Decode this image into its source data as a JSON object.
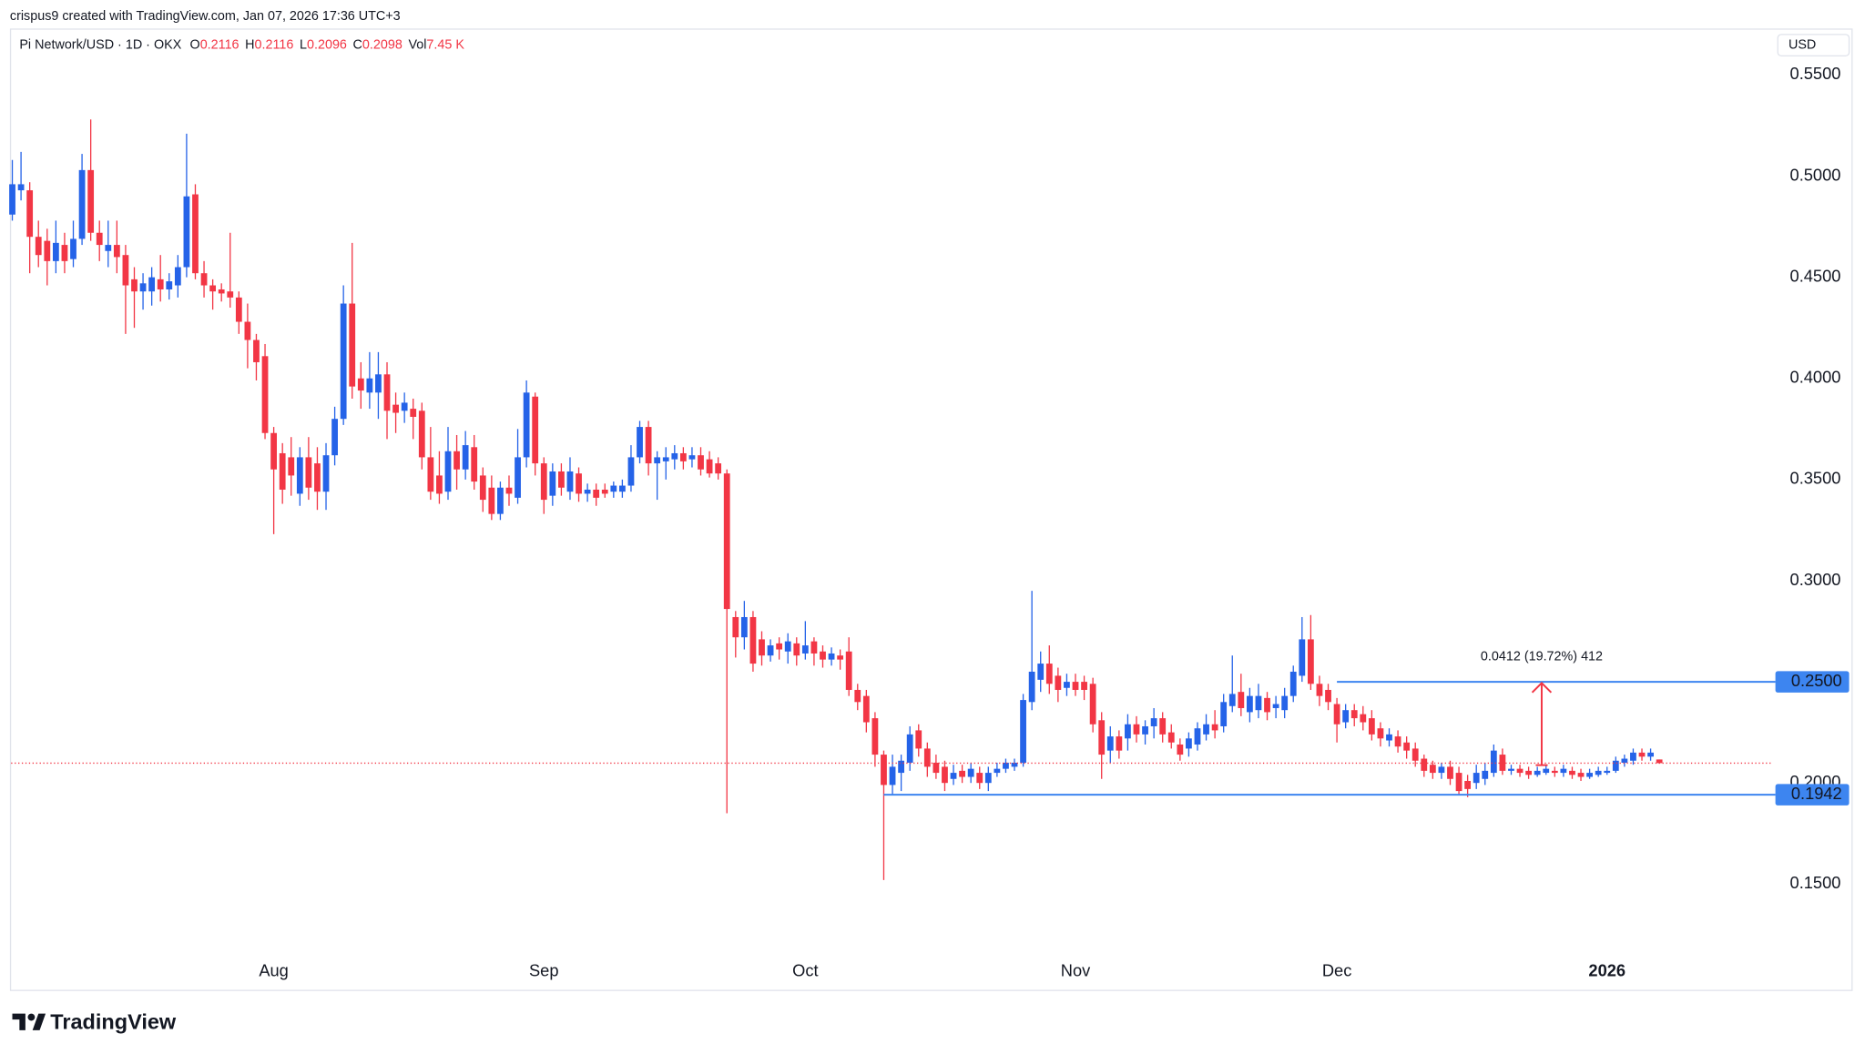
{
  "attribution": "crispus9 created with TradingView.com, Jan 07, 2026 17:36 UTC+3",
  "brand": "TradingView",
  "chart_data": {
    "type": "candlestick",
    "title": "Pi Network/USD · 1D · OKX",
    "legend": [
      {
        "key": "O",
        "value": "0.2116"
      },
      {
        "key": "H",
        "value": "0.2116"
      },
      {
        "key": "L",
        "value": "0.2096"
      },
      {
        "key": "C",
        "value": "0.2098"
      },
      {
        "key": "Vol",
        "value": "7.45 K"
      }
    ],
    "y_unit": "USD",
    "up_color": "#2563e8",
    "down_color": "#f23645",
    "ylim": [
      0.1171,
      0.5724
    ],
    "yticks": [
      {
        "value": 0.15,
        "label": "0.1500"
      },
      {
        "value": 0.2,
        "label": "0.2000"
      },
      {
        "value": 0.25,
        "label": "0.2500"
      },
      {
        "value": 0.3,
        "label": "0.3000"
      },
      {
        "value": 0.35,
        "label": "0.3500"
      },
      {
        "value": 0.4,
        "label": "0.4000"
      },
      {
        "value": 0.45,
        "label": "0.4500"
      },
      {
        "value": 0.5,
        "label": "0.5000"
      },
      {
        "value": 0.55,
        "label": "0.5500"
      }
    ],
    "categories": [
      null,
      null,
      null,
      null,
      null,
      null,
      null,
      null,
      null,
      null,
      null,
      null,
      null,
      null,
      null,
      null,
      null,
      null,
      null,
      null,
      null,
      null,
      null,
      null,
      null,
      null,
      null,
      null,
      null,
      null,
      "Aug",
      null,
      null,
      null,
      null,
      null,
      null,
      null,
      null,
      null,
      null,
      null,
      null,
      null,
      null,
      null,
      null,
      null,
      null,
      null,
      null,
      null,
      null,
      null,
      null,
      null,
      null,
      null,
      null,
      null,
      null,
      "Sep",
      null,
      null,
      null,
      null,
      null,
      null,
      null,
      null,
      null,
      null,
      null,
      null,
      null,
      null,
      null,
      null,
      null,
      null,
      null,
      null,
      null,
      null,
      null,
      null,
      null,
      null,
      null,
      null,
      null,
      "Oct",
      null,
      null,
      null,
      null,
      null,
      null,
      null,
      null,
      null,
      null,
      null,
      null,
      null,
      null,
      null,
      null,
      null,
      null,
      null,
      null,
      null,
      null,
      null,
      null,
      null,
      null,
      null,
      null,
      null,
      null,
      "Nov",
      null,
      null,
      null,
      null,
      null,
      null,
      null,
      null,
      null,
      null,
      null,
      null,
      null,
      null,
      null,
      null,
      null,
      null,
      null,
      null,
      null,
      null,
      null,
      null,
      null,
      null,
      null,
      null,
      null,
      "Dec",
      null,
      null,
      null,
      null,
      null,
      null,
      null,
      null,
      null,
      null,
      null,
      null,
      null,
      null,
      null,
      null,
      null,
      null,
      null,
      null,
      null,
      null,
      null,
      null,
      null,
      null,
      null,
      null,
      null,
      null,
      "2026",
      null,
      null,
      null,
      null,
      null,
      null
    ],
    "ohlc": [
      [
        0.481,
        0.508,
        0.478,
        0.496
      ],
      [
        0.493,
        0.512,
        0.488,
        0.496
      ],
      [
        0.493,
        0.497,
        0.452,
        0.47
      ],
      [
        0.47,
        0.478,
        0.455,
        0.461
      ],
      [
        0.468,
        0.474,
        0.446,
        0.458
      ],
      [
        0.458,
        0.478,
        0.452,
        0.467
      ],
      [
        0.466,
        0.472,
        0.452,
        0.458
      ],
      [
        0.459,
        0.478,
        0.455,
        0.469
      ],
      [
        0.469,
        0.511,
        0.466,
        0.503
      ],
      [
        0.503,
        0.528,
        0.468,
        0.472
      ],
      [
        0.472,
        0.478,
        0.458,
        0.466
      ],
      [
        0.463,
        0.478,
        0.455,
        0.466
      ],
      [
        0.466,
        0.478,
        0.452,
        0.46
      ],
      [
        0.461,
        0.466,
        0.422,
        0.446
      ],
      [
        0.449,
        0.455,
        0.425,
        0.443
      ],
      [
        0.443,
        0.452,
        0.434,
        0.447
      ],
      [
        0.443,
        0.455,
        0.436,
        0.45
      ],
      [
        0.449,
        0.461,
        0.438,
        0.444
      ],
      [
        0.444,
        0.452,
        0.439,
        0.448
      ],
      [
        0.446,
        0.461,
        0.44,
        0.455
      ],
      [
        0.455,
        0.521,
        0.45,
        0.49
      ],
      [
        0.491,
        0.496,
        0.449,
        0.452
      ],
      [
        0.452,
        0.458,
        0.44,
        0.446
      ],
      [
        0.446,
        0.449,
        0.434,
        0.443
      ],
      [
        0.444,
        0.447,
        0.438,
        0.442
      ],
      [
        0.443,
        0.472,
        0.435,
        0.44
      ],
      [
        0.44,
        0.443,
        0.422,
        0.428
      ],
      [
        0.428,
        0.437,
        0.405,
        0.419
      ],
      [
        0.419,
        0.422,
        0.399,
        0.408
      ],
      [
        0.411,
        0.417,
        0.37,
        0.373
      ],
      [
        0.373,
        0.376,
        0.323,
        0.355
      ],
      [
        0.363,
        0.368,
        0.338,
        0.345
      ],
      [
        0.361,
        0.371,
        0.342,
        0.352
      ],
      [
        0.343,
        0.366,
        0.337,
        0.361
      ],
      [
        0.361,
        0.371,
        0.34,
        0.346
      ],
      [
        0.358,
        0.366,
        0.335,
        0.344
      ],
      [
        0.344,
        0.368,
        0.335,
        0.362
      ],
      [
        0.362,
        0.386,
        0.357,
        0.38
      ],
      [
        0.38,
        0.446,
        0.377,
        0.437
      ],
      [
        0.437,
        0.467,
        0.39,
        0.396
      ],
      [
        0.4,
        0.408,
        0.385,
        0.394
      ],
      [
        0.393,
        0.413,
        0.385,
        0.4
      ],
      [
        0.393,
        0.413,
        0.38,
        0.402
      ],
      [
        0.402,
        0.408,
        0.37,
        0.384
      ],
      [
        0.387,
        0.393,
        0.373,
        0.383
      ],
      [
        0.384,
        0.393,
        0.378,
        0.388
      ],
      [
        0.385,
        0.39,
        0.37,
        0.381
      ],
      [
        0.384,
        0.388,
        0.355,
        0.361
      ],
      [
        0.361,
        0.376,
        0.34,
        0.344
      ],
      [
        0.352,
        0.364,
        0.338,
        0.343
      ],
      [
        0.344,
        0.376,
        0.34,
        0.364
      ],
      [
        0.364,
        0.372,
        0.345,
        0.355
      ],
      [
        0.355,
        0.374,
        0.35,
        0.367
      ],
      [
        0.366,
        0.372,
        0.345,
        0.349
      ],
      [
        0.352,
        0.356,
        0.334,
        0.34
      ],
      [
        0.346,
        0.352,
        0.33,
        0.333
      ],
      [
        0.333,
        0.349,
        0.33,
        0.346
      ],
      [
        0.346,
        0.352,
        0.337,
        0.343
      ],
      [
        0.341,
        0.375,
        0.338,
        0.361
      ],
      [
        0.361,
        0.399,
        0.356,
        0.393
      ],
      [
        0.391,
        0.393,
        0.352,
        0.358
      ],
      [
        0.358,
        0.361,
        0.333,
        0.34
      ],
      [
        0.342,
        0.358,
        0.337,
        0.354
      ],
      [
        0.354,
        0.358,
        0.342,
        0.346
      ],
      [
        0.344,
        0.361,
        0.34,
        0.354
      ],
      [
        0.353,
        0.356,
        0.339,
        0.343
      ],
      [
        0.343,
        0.348,
        0.339,
        0.345
      ],
      [
        0.345,
        0.348,
        0.337,
        0.341
      ],
      [
        0.345,
        0.348,
        0.341,
        0.343
      ],
      [
        0.344,
        0.349,
        0.341,
        0.347
      ],
      [
        0.344,
        0.35,
        0.341,
        0.347
      ],
      [
        0.347,
        0.367,
        0.344,
        0.361
      ],
      [
        0.361,
        0.379,
        0.358,
        0.376
      ],
      [
        0.376,
        0.379,
        0.352,
        0.358
      ],
      [
        0.358,
        0.364,
        0.34,
        0.361
      ],
      [
        0.359,
        0.366,
        0.35,
        0.361
      ],
      [
        0.36,
        0.367,
        0.355,
        0.363
      ],
      [
        0.363,
        0.366,
        0.355,
        0.359
      ],
      [
        0.36,
        0.366,
        0.356,
        0.362
      ],
      [
        0.362,
        0.366,
        0.352,
        0.355
      ],
      [
        0.36,
        0.364,
        0.351,
        0.353
      ],
      [
        0.358,
        0.361,
        0.35,
        0.353
      ],
      [
        0.353,
        0.355,
        0.185,
        0.286
      ],
      [
        0.282,
        0.285,
        0.262,
        0.272
      ],
      [
        0.272,
        0.29,
        0.266,
        0.282
      ],
      [
        0.282,
        0.285,
        0.255,
        0.259
      ],
      [
        0.271,
        0.275,
        0.258,
        0.263
      ],
      [
        0.263,
        0.271,
        0.26,
        0.268
      ],
      [
        0.269,
        0.272,
        0.261,
        0.266
      ],
      [
        0.265,
        0.274,
        0.259,
        0.27
      ],
      [
        0.269,
        0.272,
        0.258,
        0.263
      ],
      [
        0.264,
        0.28,
        0.261,
        0.268
      ],
      [
        0.27,
        0.272,
        0.258,
        0.264
      ],
      [
        0.265,
        0.268,
        0.257,
        0.261
      ],
      [
        0.261,
        0.267,
        0.258,
        0.264
      ],
      [
        0.263,
        0.266,
        0.256,
        0.261
      ],
      [
        0.265,
        0.272,
        0.243,
        0.246
      ],
      [
        0.246,
        0.249,
        0.236,
        0.24
      ],
      [
        0.243,
        0.246,
        0.225,
        0.23
      ],
      [
        0.232,
        0.235,
        0.208,
        0.214
      ],
      [
        0.214,
        0.216,
        0.152,
        0.199
      ],
      [
        0.199,
        0.214,
        0.194,
        0.208
      ],
      [
        0.205,
        0.214,
        0.196,
        0.211
      ],
      [
        0.21,
        0.228,
        0.206,
        0.224
      ],
      [
        0.226,
        0.229,
        0.213,
        0.217
      ],
      [
        0.217,
        0.22,
        0.203,
        0.208
      ],
      [
        0.21,
        0.214,
        0.202,
        0.205
      ],
      [
        0.208,
        0.211,
        0.196,
        0.2
      ],
      [
        0.202,
        0.209,
        0.199,
        0.205
      ],
      [
        0.206,
        0.209,
        0.2,
        0.203
      ],
      [
        0.203,
        0.21,
        0.2,
        0.207
      ],
      [
        0.205,
        0.208,
        0.197,
        0.2
      ],
      [
        0.2,
        0.208,
        0.196,
        0.205
      ],
      [
        0.205,
        0.21,
        0.203,
        0.207
      ],
      [
        0.207,
        0.212,
        0.205,
        0.21
      ],
      [
        0.208,
        0.212,
        0.206,
        0.21
      ],
      [
        0.21,
        0.244,
        0.208,
        0.241
      ],
      [
        0.24,
        0.295,
        0.236,
        0.255
      ],
      [
        0.251,
        0.265,
        0.245,
        0.259
      ],
      [
        0.259,
        0.268,
        0.244,
        0.249
      ],
      [
        0.253,
        0.257,
        0.24,
        0.246
      ],
      [
        0.247,
        0.254,
        0.243,
        0.25
      ],
      [
        0.25,
        0.254,
        0.243,
        0.246
      ],
      [
        0.25,
        0.253,
        0.241,
        0.246
      ],
      [
        0.249,
        0.252,
        0.225,
        0.229
      ],
      [
        0.231,
        0.235,
        0.202,
        0.214
      ],
      [
        0.216,
        0.228,
        0.21,
        0.223
      ],
      [
        0.223,
        0.226,
        0.212,
        0.216
      ],
      [
        0.222,
        0.234,
        0.216,
        0.229
      ],
      [
        0.229,
        0.233,
        0.22,
        0.224
      ],
      [
        0.224,
        0.231,
        0.219,
        0.228
      ],
      [
        0.228,
        0.237,
        0.222,
        0.232
      ],
      [
        0.232,
        0.235,
        0.22,
        0.224
      ],
      [
        0.225,
        0.229,
        0.217,
        0.22
      ],
      [
        0.219,
        0.222,
        0.211,
        0.214
      ],
      [
        0.217,
        0.225,
        0.213,
        0.222
      ],
      [
        0.219,
        0.23,
        0.216,
        0.227
      ],
      [
        0.224,
        0.234,
        0.221,
        0.229
      ],
      [
        0.229,
        0.236,
        0.222,
        0.226
      ],
      [
        0.228,
        0.244,
        0.225,
        0.24
      ],
      [
        0.238,
        0.263,
        0.235,
        0.244
      ],
      [
        0.245,
        0.254,
        0.233,
        0.237
      ],
      [
        0.235,
        0.247,
        0.23,
        0.243
      ],
      [
        0.236,
        0.249,
        0.232,
        0.243
      ],
      [
        0.242,
        0.245,
        0.231,
        0.235
      ],
      [
        0.237,
        0.243,
        0.232,
        0.239
      ],
      [
        0.236,
        0.247,
        0.232,
        0.243
      ],
      [
        0.243,
        0.258,
        0.24,
        0.255
      ],
      [
        0.253,
        0.282,
        0.25,
        0.271
      ],
      [
        0.271,
        0.283,
        0.246,
        0.249
      ],
      [
        0.249,
        0.253,
        0.238,
        0.243
      ],
      [
        0.246,
        0.249,
        0.236,
        0.24
      ],
      [
        0.239,
        0.242,
        0.22,
        0.229
      ],
      [
        0.23,
        0.239,
        0.227,
        0.236
      ],
      [
        0.236,
        0.239,
        0.228,
        0.232
      ],
      [
        0.234,
        0.238,
        0.226,
        0.23
      ],
      [
        0.232,
        0.236,
        0.221,
        0.224
      ],
      [
        0.227,
        0.23,
        0.218,
        0.222
      ],
      [
        0.221,
        0.227,
        0.218,
        0.224
      ],
      [
        0.223,
        0.226,
        0.215,
        0.218
      ],
      [
        0.22,
        0.223,
        0.212,
        0.216
      ],
      [
        0.217,
        0.22,
        0.208,
        0.211
      ],
      [
        0.212,
        0.214,
        0.203,
        0.206
      ],
      [
        0.209,
        0.211,
        0.202,
        0.205
      ],
      [
        0.205,
        0.21,
        0.202,
        0.208
      ],
      [
        0.208,
        0.211,
        0.199,
        0.202
      ],
      [
        0.205,
        0.208,
        0.194,
        0.196
      ],
      [
        0.201,
        0.204,
        0.193,
        0.197
      ],
      [
        0.2,
        0.209,
        0.197,
        0.205
      ],
      [
        0.202,
        0.21,
        0.199,
        0.206
      ],
      [
        0.205,
        0.219,
        0.203,
        0.216
      ],
      [
        0.214,
        0.217,
        0.204,
        0.206
      ],
      [
        0.206,
        0.209,
        0.204,
        0.207
      ],
      [
        0.207,
        0.209,
        0.203,
        0.205
      ],
      [
        0.206,
        0.208,
        0.202,
        0.204
      ],
      [
        0.204,
        0.208,
        0.203,
        0.206
      ],
      [
        0.205,
        0.209,
        0.204,
        0.207
      ],
      [
        0.206,
        0.208,
        0.203,
        0.205
      ],
      [
        0.205,
        0.209,
        0.203,
        0.207
      ],
      [
        0.206,
        0.208,
        0.202,
        0.204
      ],
      [
        0.205,
        0.207,
        0.201,
        0.203
      ],
      [
        0.203,
        0.207,
        0.202,
        0.205
      ],
      [
        0.204,
        0.208,
        0.203,
        0.206
      ],
      [
        0.205,
        0.208,
        0.204,
        0.206
      ],
      [
        0.206,
        0.213,
        0.205,
        0.211
      ],
      [
        0.21,
        0.214,
        0.208,
        0.212
      ],
      [
        0.211,
        0.217,
        0.209,
        0.215
      ],
      [
        0.215,
        0.217,
        0.211,
        0.213
      ],
      [
        0.213,
        0.217,
        0.211,
        0.215
      ],
      [
        0.2116,
        0.2116,
        0.2096,
        0.2098
      ]
    ],
    "levels": [
      {
        "value": 0.25,
        "label": "0.2500",
        "color": "#3d85f0"
      },
      {
        "value": 0.1942,
        "label": "0.1942",
        "color": "#3d85f0"
      }
    ],
    "measure": {
      "from": 0.2088,
      "to": 0.25,
      "label": "0.0412 (19.72%) 412",
      "color": "#f23645"
    }
  }
}
